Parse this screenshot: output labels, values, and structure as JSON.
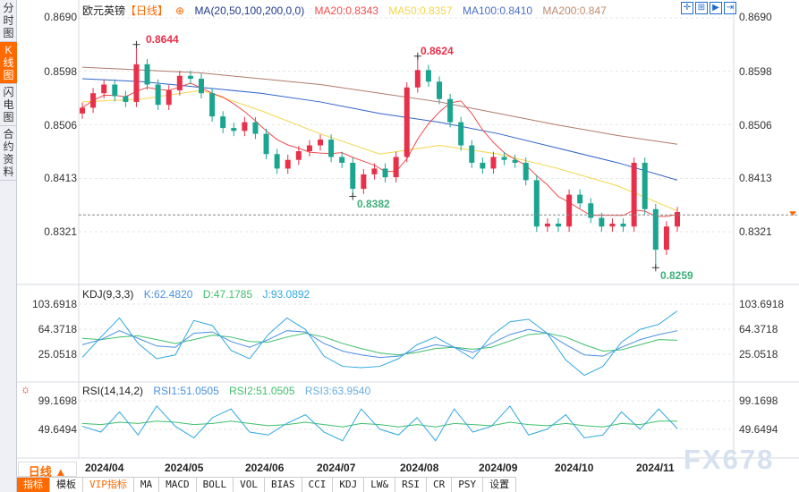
{
  "sidebar": {
    "tabs": [
      {
        "label": "分时图"
      },
      {
        "label": "K线图",
        "active": true
      },
      {
        "label": "闪电图"
      },
      {
        "label": "合约资料"
      }
    ]
  },
  "header": {
    "symbol": "欧元英镑",
    "period": "【日线】",
    "ma_title": "MA(20,50,100,200,0,0)",
    "ma20": "MA20:0.8343",
    "ma50": "MA50:0.8357",
    "ma100": "MA100:0.8410",
    "ma200": "MA200:0.847",
    "tools": [
      "crosshair-icon",
      "zoom-range-icon",
      "play-icon",
      "jump-latest-icon"
    ]
  },
  "colors": {
    "up": "#e8304a",
    "down": "#1ba590",
    "ma20": "#ef4c4c",
    "ma50": "#f3d64a",
    "ma100": "#2f63c9",
    "ma200": "#b07a6a",
    "accent": "#ff6a00",
    "k": "#4a90e2",
    "d": "#3fbf6a",
    "j": "#30a8e0"
  },
  "price_axis": [
    "0.8690",
    "0.8598",
    "0.8506",
    "0.8413",
    "0.8321"
  ],
  "chart_data": [
    {
      "type": "candlestick",
      "ylim": [
        0.8235,
        0.87
      ],
      "x_ticks": [
        "2024/04",
        "2024/05",
        "2024/06",
        "2024/07",
        "2024/08",
        "2024/09",
        "2024/10",
        "2024/11"
      ],
      "closes": [
        0.8535,
        0.856,
        0.8575,
        0.8555,
        0.8545,
        0.861,
        0.8575,
        0.854,
        0.8565,
        0.859,
        0.8585,
        0.856,
        0.852,
        0.85,
        0.8495,
        0.851,
        0.849,
        0.8455,
        0.843,
        0.8445,
        0.846,
        0.847,
        0.848,
        0.845,
        0.844,
        0.8395,
        0.842,
        0.843,
        0.8415,
        0.845,
        0.857,
        0.86,
        0.858,
        0.855,
        0.851,
        0.847,
        0.844,
        0.843,
        0.845,
        0.8445,
        0.844,
        0.841,
        0.833,
        0.8335,
        0.833,
        0.8385,
        0.837,
        0.8345,
        0.833,
        0.8335,
        0.833,
        0.844,
        0.836,
        0.829,
        0.833,
        0.8355
      ],
      "annotations": [
        {
          "label": "0.8644",
          "type": "high"
        },
        {
          "label": "0.8624",
          "type": "high"
        },
        {
          "label": "0.8382",
          "type": "low"
        },
        {
          "label": "0.8259",
          "type": "low"
        }
      ],
      "current_price": 0.835,
      "ma200": [
        0.8605,
        0.86,
        0.8595,
        0.8585,
        0.8575,
        0.856,
        0.8545,
        0.8525,
        0.8505,
        0.8487,
        0.8472
      ],
      "ma100": [
        0.8585,
        0.858,
        0.857,
        0.856,
        0.8545,
        0.8525,
        0.851,
        0.849,
        0.8465,
        0.844,
        0.841
      ],
      "ma50": [
        0.8545,
        0.855,
        0.8565,
        0.853,
        0.849,
        0.8455,
        0.847,
        0.8455,
        0.843,
        0.84,
        0.8357
      ]
    },
    {
      "type": "line",
      "title": "KDJ(9,3,3)",
      "k_label": "K:62.4820",
      "d_label": "D:47.1785",
      "j_label": "J:93.0892",
      "y_ticks": [
        "103.6918",
        "64.3718",
        "25.0518"
      ],
      "K": [
        40,
        48,
        62,
        50,
        38,
        36,
        58,
        60,
        45,
        36,
        48,
        62,
        60,
        42,
        30,
        24,
        20,
        22,
        32,
        40,
        36,
        28,
        42,
        56,
        64,
        58,
        40,
        24,
        22,
        36,
        48,
        56,
        62
      ],
      "D": [
        50,
        48,
        52,
        54,
        48,
        42,
        48,
        55,
        52,
        45,
        44,
        52,
        58,
        52,
        42,
        34,
        27,
        24,
        28,
        34,
        36,
        33,
        36,
        46,
        56,
        58,
        52,
        40,
        30,
        32,
        40,
        48,
        47
      ],
      "J": [
        20,
        52,
        82,
        42,
        18,
        24,
        78,
        70,
        31,
        18,
        56,
        82,
        64,
        22,
        6,
        4,
        6,
        18,
        40,
        52,
        36,
        18,
        54,
        76,
        80,
        58,
        16,
        -8,
        6,
        44,
        64,
        72,
        93
      ]
    },
    {
      "type": "line",
      "title": "RSI(14,14,2)",
      "rsi1_label": "RSI1:51.0505",
      "rsi2_label": "RSI2:51.0505",
      "rsi3_label": "RSI3:63.9540",
      "y_ticks": [
        "99.1698",
        "49.6494"
      ],
      "RSI1": [
        55,
        45,
        80,
        40,
        90,
        55,
        35,
        70,
        85,
        45,
        40,
        60,
        75,
        45,
        30,
        85,
        50,
        40,
        70,
        30,
        85,
        45,
        55,
        90,
        40,
        50,
        75,
        35,
        40,
        80,
        50,
        85,
        51
      ],
      "RSI3": [
        60,
        58,
        62,
        60,
        64,
        62,
        58,
        60,
        64,
        60,
        56,
        58,
        62,
        58,
        54,
        60,
        58,
        54,
        58,
        54,
        60,
        58,
        56,
        62,
        58,
        56,
        60,
        56,
        54,
        60,
        58,
        64,
        64
      ]
    }
  ],
  "footer": {
    "period": "日线 ▲",
    "tabs": [
      "指标",
      "模板",
      "VIP指标",
      "MA",
      "MACD",
      "BOLL",
      "VOL",
      "BIAS",
      "CCI",
      "KDJ",
      "LW&",
      "RSI",
      "CR",
      "PSY",
      "设置"
    ],
    "watermark": "FX678"
  }
}
